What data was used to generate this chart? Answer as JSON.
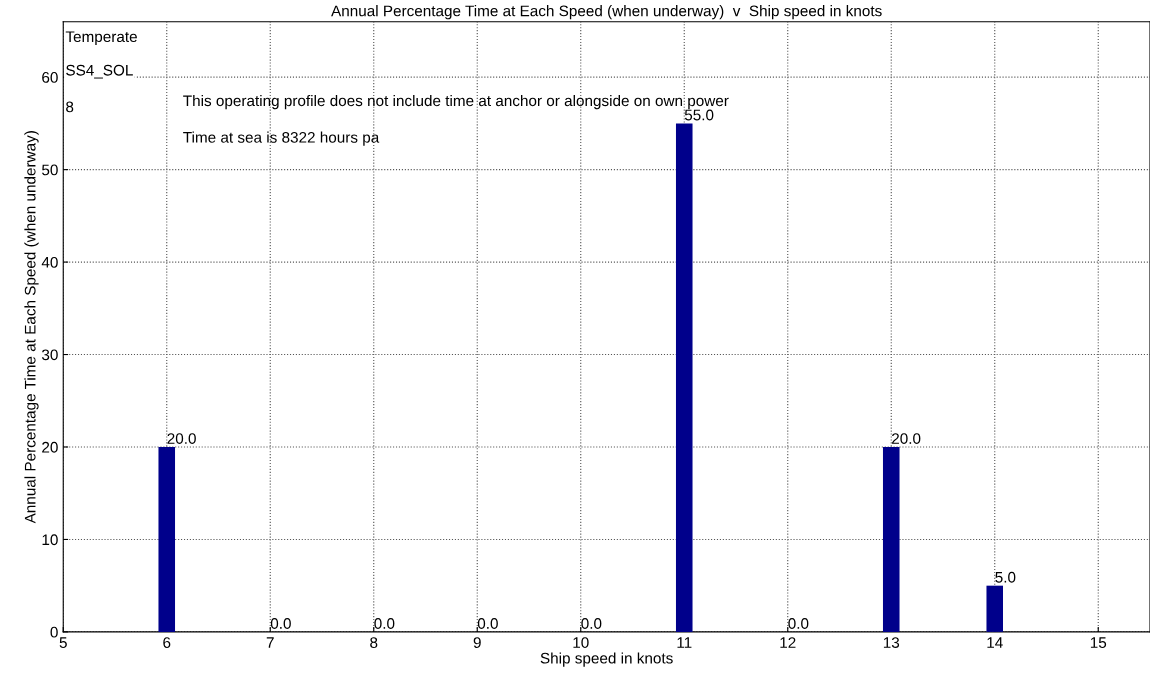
{
  "chart_data": {
    "type": "bar",
    "title": "Annual Percentage Time at Each Speed (when underway)  v  Ship speed in knots",
    "xlabel": "Ship speed in knots",
    "ylabel": "Annual Percentage Time at Each Speed (when underway)",
    "x": [
      6,
      7,
      8,
      9,
      10,
      11,
      12,
      13,
      14
    ],
    "series": [
      {
        "color": "#00008b",
        "values": [
          20,
          0,
          0,
          0,
          0,
          55,
          0,
          20,
          5
        ]
      }
    ],
    "value_labels": [
      "20.0",
      "0.0",
      "0.0",
      "0.0",
      "0.0",
      "55.0",
      "0.0",
      "20.0",
      "5.0"
    ],
    "xlim": [
      5,
      15.5
    ],
    "xticks": [
      5,
      6,
      7,
      8,
      9,
      10,
      11,
      12,
      13,
      14,
      15
    ],
    "ylim": [
      0,
      66
    ],
    "yticks": [
      0,
      10,
      20,
      30,
      40,
      50,
      60
    ],
    "grid": true,
    "annotations": [
      "Temperate",
      "SS4_SOL",
      "8",
      "This operating profile does not include time at anchor or alongside on own power",
      "Time at sea is 8322 hours pa"
    ]
  }
}
